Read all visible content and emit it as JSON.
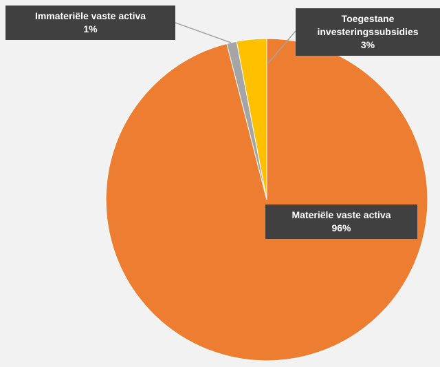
{
  "chart_data": {
    "type": "pie",
    "categories": [
      "Materiële vaste activa",
      "Immateriële vaste activa",
      "Toegestane investeringssubsidies"
    ],
    "values": [
      96,
      1,
      3
    ],
    "value_labels": [
      "96%",
      "1%",
      "3%"
    ],
    "colors": [
      "#ed7d31",
      "#a5a5a5",
      "#ffc000"
    ]
  }
}
